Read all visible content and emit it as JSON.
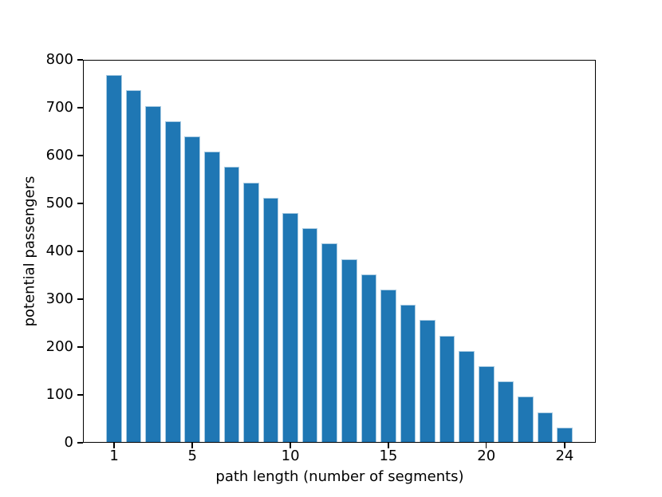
{
  "chart_data": {
    "type": "bar",
    "title": "",
    "xlabel": "path length (number of segments)",
    "ylabel": "potential passengers",
    "x": [
      1,
      2,
      3,
      4,
      5,
      6,
      7,
      8,
      9,
      10,
      11,
      12,
      13,
      14,
      15,
      16,
      17,
      18,
      19,
      20,
      21,
      22,
      23,
      24
    ],
    "values": [
      768,
      736,
      704,
      672,
      640,
      608,
      576,
      544,
      512,
      480,
      448,
      416,
      384,
      352,
      320,
      288,
      256,
      224,
      192,
      160,
      128,
      96,
      64,
      32
    ],
    "xticks": [
      1,
      5,
      10,
      15,
      20,
      24
    ],
    "yticks": [
      0,
      100,
      200,
      300,
      400,
      500,
      600,
      700,
      800
    ],
    "xlim": [
      -0.59,
      25.59
    ],
    "ylim": [
      0,
      800
    ],
    "bar_width": 0.8,
    "bar_color": "#1f77b4",
    "bar_edge_color": "#a9cbe2",
    "axis_color": "#000000",
    "background_color": "#ffffff",
    "grid": false,
    "legend_position": "none"
  }
}
